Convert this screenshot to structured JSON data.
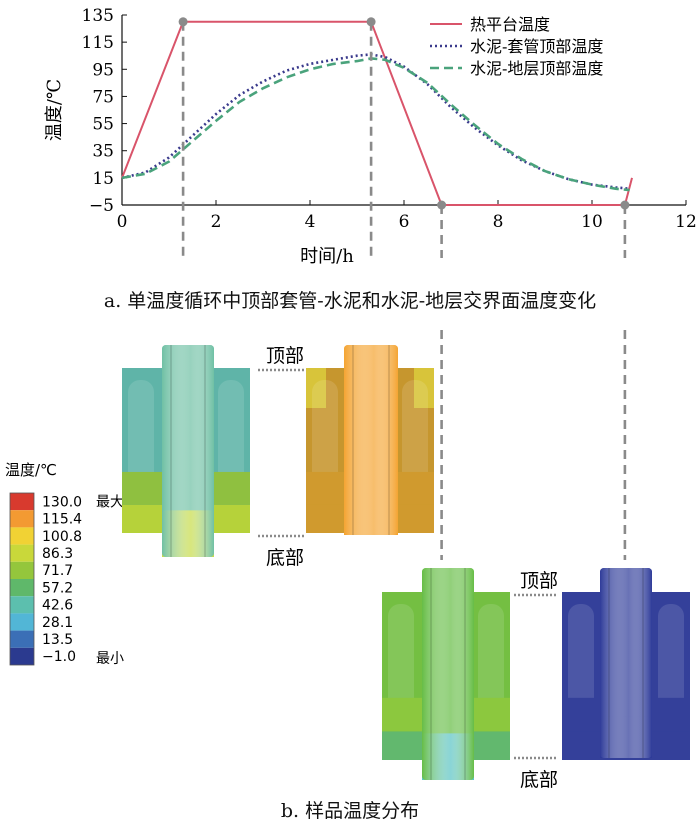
{
  "chart_data": {
    "type": "line",
    "xlabel": "时间/h",
    "ylabel": "温度/℃",
    "xlim": [
      0,
      12
    ],
    "ylim": [
      -5,
      135
    ],
    "xticks": [
      0,
      2,
      4,
      6,
      8,
      10,
      12
    ],
    "yticks": [
      -5,
      15,
      35,
      55,
      75,
      95,
      115,
      135
    ],
    "grid": false,
    "legend": "top-right",
    "series": [
      {
        "name": "热平台温度",
        "style": "solid",
        "color": "#d9546a",
        "x": [
          0,
          1.3,
          5.3,
          6.8,
          10.7,
          10.85
        ],
        "y": [
          15,
          130,
          130,
          -5,
          -5,
          15
        ]
      },
      {
        "name": "水泥-套管顶部温度",
        "style": "dotted",
        "color": "#3a3a8c",
        "x": [
          0,
          0.5,
          1.0,
          1.5,
          2.0,
          2.5,
          3.0,
          3.5,
          4.0,
          4.5,
          5.0,
          5.3,
          5.6,
          6.0,
          6.5,
          7.0,
          7.5,
          8.0,
          8.5,
          9.0,
          9.5,
          10.0,
          10.5,
          10.8
        ],
        "y": [
          15,
          19,
          30,
          46,
          62,
          76,
          86,
          94,
          99,
          102,
          105,
          106,
          104,
          97,
          84,
          67,
          52,
          39,
          28,
          20,
          14,
          10,
          8,
          7
        ]
      },
      {
        "name": "水泥-地层顶部温度",
        "style": "dashed",
        "color": "#4aa37c",
        "x": [
          0,
          0.5,
          1.0,
          1.5,
          2.0,
          2.5,
          3.0,
          3.5,
          4.0,
          4.5,
          5.0,
          5.3,
          5.6,
          6.0,
          6.5,
          7.0,
          7.5,
          8.0,
          8.5,
          9.0,
          9.5,
          10.0,
          10.5,
          10.8
        ],
        "y": [
          15,
          18,
          27,
          42,
          57,
          71,
          81,
          89,
          95,
          99,
          101,
          103,
          102,
          96,
          85,
          69,
          54,
          40,
          29,
          20,
          14,
          10,
          7,
          6
        ]
      }
    ],
    "markers": [
      {
        "x": 1.3,
        "y": 130
      },
      {
        "x": 5.3,
        "y": 130
      },
      {
        "x": 6.8,
        "y": -5
      },
      {
        "x": 10.7,
        "y": -5
      }
    ]
  },
  "caption_a": "a. 单温度循环中顶部套管-水泥和水泥-地层交界面温度变化",
  "caption_b": "b. 样品温度分布",
  "colorbar": {
    "title": "温度/℃",
    "ticks": [
      "130.0",
      "115.4",
      "100.8",
      "86.3",
      "71.7",
      "57.2",
      "42.6",
      "28.1",
      "13.5",
      "−1.0"
    ],
    "max_label": "最大",
    "min_label": "最小",
    "colors": [
      "#d83a2e",
      "#f39a32",
      "#f1d234",
      "#c9d83a",
      "#94c63c",
      "#5fb86a",
      "#5cbfae",
      "#52b6d6",
      "#3b6fb6",
      "#2b3a8f"
    ]
  },
  "sample_labels": {
    "top": "顶部",
    "bottom": "底部"
  },
  "samples": [
    {
      "name": "stage-1",
      "sleeve": "#5fb4a8",
      "pipe": "#6fc0a4",
      "band_mid": "#8fc040",
      "band_low": "#b6d23a",
      "pipe_low": "#c8dc4a"
    },
    {
      "name": "stage-2",
      "sleeve": "#c6962e",
      "pipe": "#f4a432",
      "corner": "#d8c43a",
      "band_mid": "#d09a2e",
      "band_low": "#d09a2e",
      "pipe_low": "#f4a432"
    },
    {
      "name": "stage-3",
      "sleeve": "#74bf42",
      "pipe": "#66bd46",
      "band_mid": "#8cc83e",
      "band_low": "#62b86e",
      "pipe_low": "#5cc4c6"
    },
    {
      "name": "stage-4",
      "sleeve": "#34409a",
      "pipe": "#2e3b99",
      "band_mid": "#34409a",
      "band_low": "#34409a",
      "pipe_low": "#2e3b99"
    }
  ]
}
